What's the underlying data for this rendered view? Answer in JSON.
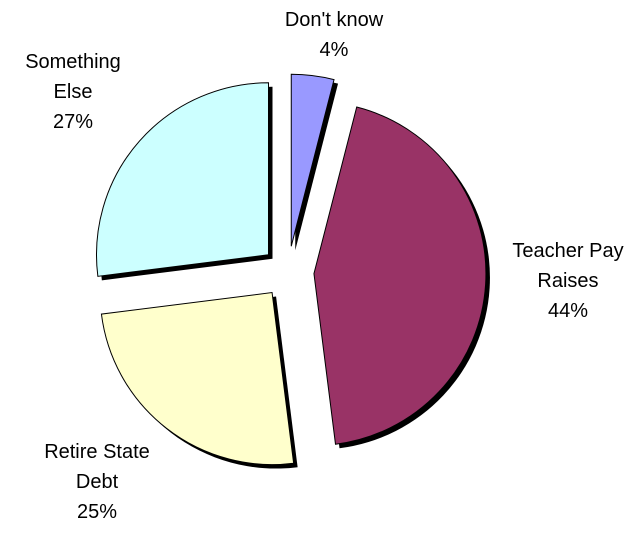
{
  "chart_data": {
    "type": "pie",
    "title": "",
    "exploded": true,
    "slices": [
      {
        "label": [
          "Don't know"
        ],
        "value": 4,
        "percent_text": "4%",
        "color": "#9999ff"
      },
      {
        "label": [
          "Teacher Pay",
          "Raises"
        ],
        "value": 44,
        "percent_text": "44%",
        "color": "#993366"
      },
      {
        "label": [
          "Retire State",
          "Debt"
        ],
        "value": 25,
        "percent_text": "25%",
        "color": "#ffffcc"
      },
      {
        "label": [
          "Something",
          "Else"
        ],
        "value": 27,
        "percent_text": "27%",
        "color": "#ccffff"
      }
    ]
  }
}
